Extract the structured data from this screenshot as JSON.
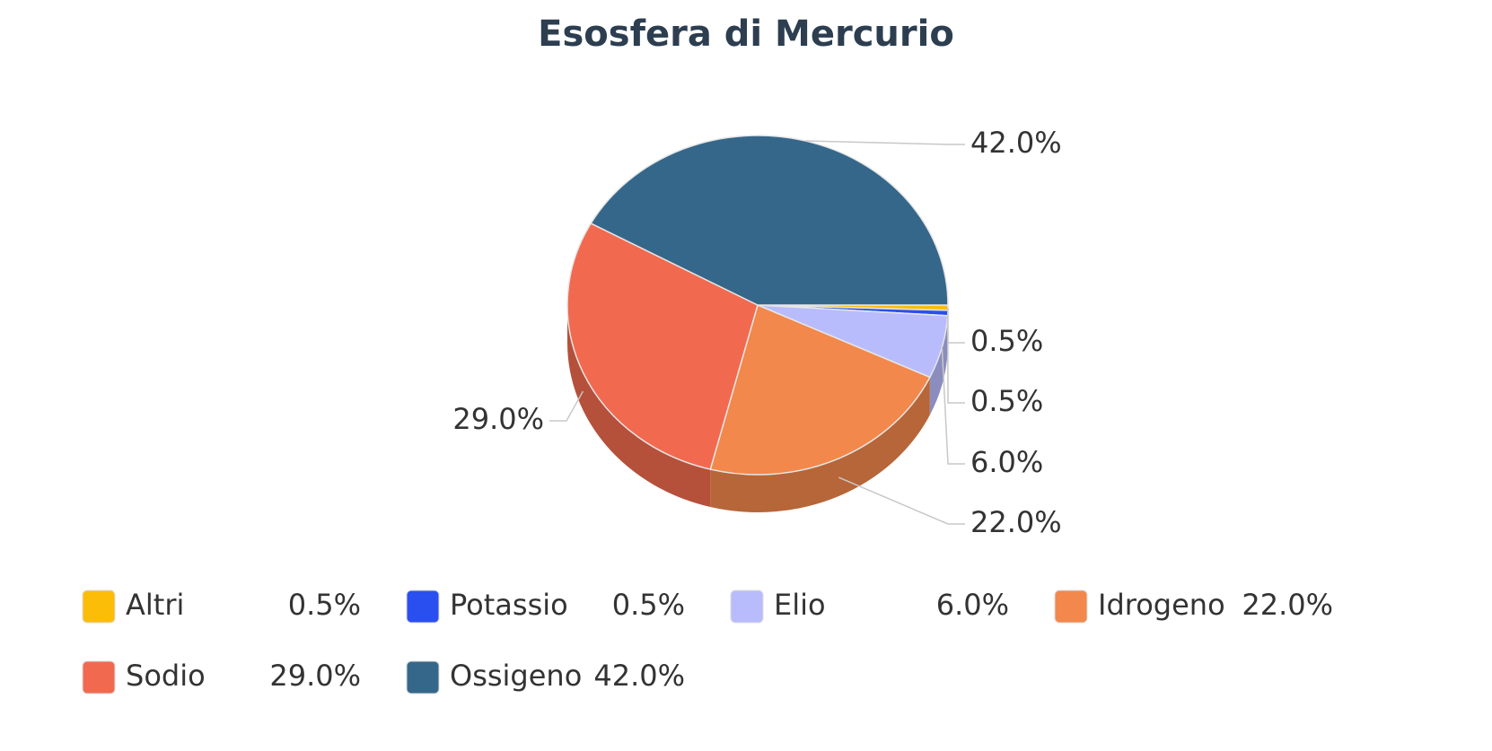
{
  "chart_data": {
    "type": "pie3d",
    "title": "Esosfera di Mercurio",
    "categories": [
      "Altri",
      "Potassio",
      "Elio",
      "Idrogeno",
      "Sodio",
      "Ossigeno"
    ],
    "values": [
      0.5,
      0.5,
      6.0,
      22.0,
      29.0,
      42.0
    ],
    "value_labels": [
      "0.5%",
      "0.5%",
      "6.0%",
      "22.0%",
      "29.0%",
      "42.0%"
    ],
    "colors": [
      "#fbbd08",
      "#2a4ff0",
      "#b8bcfd",
      "#f2884b",
      "#f16a4f",
      "#35678a"
    ]
  }
}
